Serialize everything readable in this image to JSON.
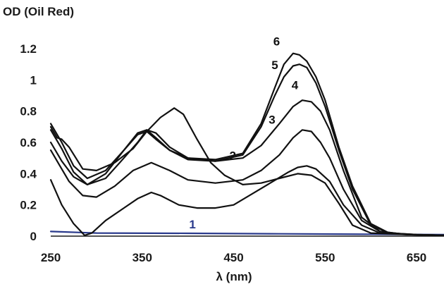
{
  "chart_data": {
    "type": "line",
    "ylabel": "OD (Oil Red)",
    "xlabel": "λ (nm)",
    "xlim": [
      250,
      680
    ],
    "ylim": [
      0,
      1.25
    ],
    "x_ticks": [
      250,
      350,
      450,
      550,
      650
    ],
    "x_tick_labels": [
      "250",
      "350",
      "450",
      "550",
      "650"
    ],
    "y_ticks": [
      0,
      0.2,
      0.4,
      0.6,
      0.8,
      1,
      1.2
    ],
    "y_tick_labels": [
      "0",
      "0.2",
      "0.4",
      "0.6",
      "0.8",
      "1",
      "1.2"
    ],
    "grid": false,
    "legend": "none",
    "series": [
      {
        "name": "1",
        "color": "#2a3a8c",
        "label_at": [
          405,
          0.05
        ],
        "points": [
          [
            250,
            0.03
          ],
          [
            300,
            0.02
          ],
          [
            400,
            0.018
          ],
          [
            500,
            0.015
          ],
          [
            600,
            0.012
          ],
          [
            680,
            0.01
          ]
        ]
      },
      {
        "name": "2",
        "color": "#111111",
        "label_at": [
          449,
          0.49
        ],
        "points": [
          [
            250,
            0.36
          ],
          [
            262,
            0.2
          ],
          [
            275,
            0.08
          ],
          [
            287,
            0.005
          ],
          [
            295,
            0.02
          ],
          [
            310,
            0.1
          ],
          [
            330,
            0.18
          ],
          [
            345,
            0.24
          ],
          [
            360,
            0.28
          ],
          [
            370,
            0.26
          ],
          [
            390,
            0.2
          ],
          [
            410,
            0.18
          ],
          [
            430,
            0.18
          ],
          [
            450,
            0.2
          ],
          [
            470,
            0.27
          ],
          [
            490,
            0.34
          ],
          [
            510,
            0.41
          ],
          [
            520,
            0.44
          ],
          [
            530,
            0.45
          ],
          [
            540,
            0.43
          ],
          [
            555,
            0.35
          ],
          [
            570,
            0.2
          ],
          [
            590,
            0.07
          ],
          [
            610,
            0.02
          ],
          [
            640,
            0.01
          ],
          [
            680,
            0.005
          ]
        ]
      },
      {
        "name": "3",
        "color": "#111111",
        "label_at": [
          492,
          0.72
        ],
        "points": [
          [
            250,
            0.55
          ],
          [
            260,
            0.45
          ],
          [
            270,
            0.35
          ],
          [
            285,
            0.26
          ],
          [
            300,
            0.25
          ],
          [
            320,
            0.32
          ],
          [
            340,
            0.42
          ],
          [
            360,
            0.47
          ],
          [
            380,
            0.42
          ],
          [
            400,
            0.36
          ],
          [
            430,
            0.34
          ],
          [
            460,
            0.36
          ],
          [
            480,
            0.42
          ],
          [
            500,
            0.52
          ],
          [
            515,
            0.63
          ],
          [
            525,
            0.68
          ],
          [
            535,
            0.67
          ],
          [
            545,
            0.6
          ],
          [
            555,
            0.5
          ],
          [
            570,
            0.3
          ],
          [
            590,
            0.1
          ],
          [
            610,
            0.03
          ],
          [
            640,
            0.01
          ],
          [
            680,
            0.005
          ]
        ]
      },
      {
        "name": "4",
        "color": "#111111",
        "label_at": [
          517,
          0.94
        ],
        "points": [
          [
            250,
            0.6
          ],
          [
            262,
            0.48
          ],
          [
            275,
            0.38
          ],
          [
            290,
            0.33
          ],
          [
            310,
            0.37
          ],
          [
            330,
            0.5
          ],
          [
            345,
            0.6
          ],
          [
            355,
            0.68
          ],
          [
            365,
            0.66
          ],
          [
            380,
            0.57
          ],
          [
            400,
            0.5
          ],
          [
            430,
            0.48
          ],
          [
            460,
            0.5
          ],
          [
            480,
            0.58
          ],
          [
            500,
            0.72
          ],
          [
            515,
            0.83
          ],
          [
            525,
            0.87
          ],
          [
            535,
            0.86
          ],
          [
            545,
            0.8
          ],
          [
            555,
            0.68
          ],
          [
            570,
            0.42
          ],
          [
            590,
            0.12
          ],
          [
            610,
            0.03
          ],
          [
            640,
            0.01
          ],
          [
            680,
            0.005
          ]
        ]
      },
      {
        "name": "5",
        "color": "#111111",
        "label_at": [
          495,
          1.07
        ],
        "points": [
          [
            250,
            0.68
          ],
          [
            262,
            0.56
          ],
          [
            275,
            0.41
          ],
          [
            290,
            0.33
          ],
          [
            310,
            0.4
          ],
          [
            330,
            0.55
          ],
          [
            345,
            0.65
          ],
          [
            355,
            0.67
          ],
          [
            365,
            0.62
          ],
          [
            380,
            0.55
          ],
          [
            400,
            0.49
          ],
          [
            430,
            0.48
          ],
          [
            460,
            0.52
          ],
          [
            480,
            0.7
          ],
          [
            495,
            0.9
          ],
          [
            505,
            1.02
          ],
          [
            515,
            1.09
          ],
          [
            522,
            1.1
          ],
          [
            530,
            1.08
          ],
          [
            540,
            0.98
          ],
          [
            550,
            0.83
          ],
          [
            565,
            0.55
          ],
          [
            580,
            0.3
          ],
          [
            600,
            0.07
          ],
          [
            620,
            0.02
          ],
          [
            650,
            0.01
          ],
          [
            680,
            0.005
          ]
        ]
      },
      {
        "name": "6",
        "color": "#111111",
        "label_at": [
          497,
          1.22
        ],
        "points": [
          [
            250,
            0.72
          ],
          [
            262,
            0.6
          ],
          [
            275,
            0.45
          ],
          [
            290,
            0.37
          ],
          [
            310,
            0.42
          ],
          [
            330,
            0.55
          ],
          [
            345,
            0.66
          ],
          [
            355,
            0.68
          ],
          [
            365,
            0.63
          ],
          [
            380,
            0.55
          ],
          [
            400,
            0.5
          ],
          [
            430,
            0.49
          ],
          [
            460,
            0.53
          ],
          [
            480,
            0.72
          ],
          [
            495,
            0.95
          ],
          [
            505,
            1.1
          ],
          [
            515,
            1.17
          ],
          [
            522,
            1.16
          ],
          [
            530,
            1.12
          ],
          [
            540,
            1.02
          ],
          [
            550,
            0.87
          ],
          [
            565,
            0.57
          ],
          [
            580,
            0.32
          ],
          [
            600,
            0.08
          ],
          [
            620,
            0.02
          ],
          [
            650,
            0.01
          ],
          [
            680,
            0.005
          ]
        ]
      },
      {
        "name": "",
        "color": "#111111",
        "points": [
          [
            250,
            0.7
          ],
          [
            257,
            0.63
          ],
          [
            262,
            0.62
          ],
          [
            270,
            0.57
          ],
          [
            285,
            0.43
          ],
          [
            300,
            0.42
          ],
          [
            320,
            0.47
          ],
          [
            340,
            0.56
          ],
          [
            355,
            0.67
          ],
          [
            370,
            0.76
          ],
          [
            385,
            0.82
          ],
          [
            395,
            0.78
          ],
          [
            410,
            0.62
          ],
          [
            425,
            0.47
          ],
          [
            440,
            0.39
          ],
          [
            460,
            0.33
          ],
          [
            480,
            0.34
          ],
          [
            500,
            0.37
          ],
          [
            520,
            0.4
          ],
          [
            535,
            0.39
          ],
          [
            550,
            0.34
          ],
          [
            565,
            0.21
          ],
          [
            580,
            0.07
          ],
          [
            600,
            0.02
          ],
          [
            640,
            0.01
          ],
          [
            680,
            0.005
          ]
        ]
      }
    ]
  }
}
